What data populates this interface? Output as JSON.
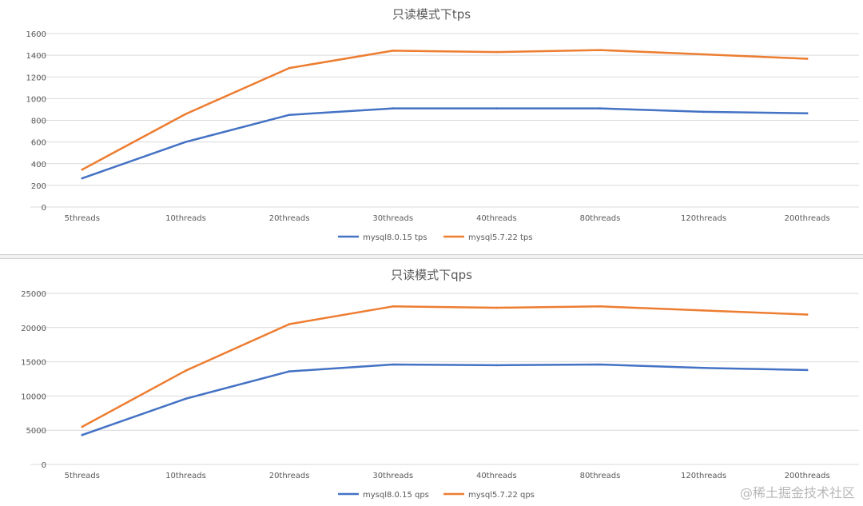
{
  "watermark": "@稀土掘金技术社区",
  "chart_data": [
    {
      "type": "line",
      "title": "只读模式下tps",
      "categories": [
        "5threads",
        "10threads",
        "20threads",
        "30threads",
        "40threads",
        "80threads",
        "120threads",
        "200threads"
      ],
      "series": [
        {
          "name": "mysql8.0.15 tps",
          "color": "#4472c4",
          "values": [
            265,
            600,
            850,
            910,
            910,
            910,
            878,
            865
          ]
        },
        {
          "name": "mysql5.7.22 tps",
          "color": "#ed7d31",
          "values": [
            345,
            858,
            1282,
            1442,
            1430,
            1448,
            1408,
            1368
          ]
        }
      ],
      "ylim": [
        0,
        1600
      ],
      "yticks": [
        0,
        200,
        400,
        600,
        800,
        1000,
        1200,
        1400,
        1600
      ],
      "grid": true,
      "legend": "bottom"
    },
    {
      "type": "line",
      "title": "只读模式下qps",
      "categories": [
        "5threads",
        "10threads",
        "20threads",
        "30threads",
        "40threads",
        "80threads",
        "120threads",
        "200threads"
      ],
      "series": [
        {
          "name": "mysql8.0.15 qps",
          "color": "#4472c4",
          "values": [
            4300,
            9600,
            13600,
            14600,
            14500,
            14600,
            14100,
            13800
          ]
        },
        {
          "name": "mysql5.7.22 qps",
          "color": "#ed7d31",
          "values": [
            5500,
            13700,
            20500,
            23100,
            22900,
            23100,
            22500,
            21900
          ]
        }
      ],
      "ylim": [
        0,
        25000
      ],
      "yticks": [
        0,
        5000,
        10000,
        15000,
        20000,
        25000
      ],
      "grid": true,
      "legend": "bottom"
    }
  ]
}
